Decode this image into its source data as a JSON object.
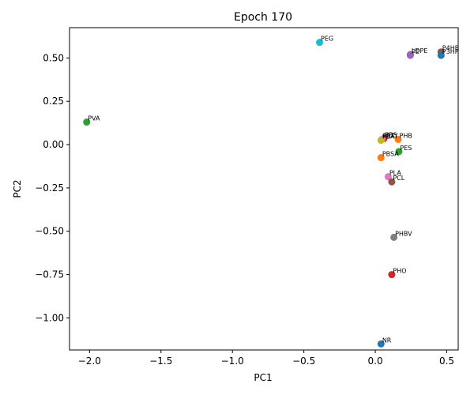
{
  "chart_data": {
    "type": "scatter",
    "title": "Epoch 170",
    "xlabel": "PC1",
    "ylabel": "PC2",
    "xlim": [
      -2.14,
      0.58
    ],
    "ylim": [
      -1.185,
      0.675
    ],
    "grid": false,
    "xticks": [
      -2.0,
      -1.5,
      -1.0,
      -0.5,
      0.0,
      0.5
    ],
    "xtick_labels": [
      "−2.0",
      "−1.5",
      "−1.0",
      "−0.5",
      "0.0",
      "0.5"
    ],
    "yticks": [
      0.5,
      0.25,
      0.0,
      -0.25,
      -0.5,
      -0.75,
      -1.0
    ],
    "ytick_labels": [
      "0.50",
      "0.25",
      "0.00",
      "−0.25",
      "−0.50",
      "−0.75",
      "−1.00"
    ],
    "points": [
      {
        "label": "PEG",
        "x": -0.39,
        "y": 0.59,
        "color": "#17becf"
      },
      {
        "label": "P4HB",
        "x": 0.46,
        "y": 0.535,
        "color": "#8c564b"
      },
      {
        "label": "P3HP",
        "x": 0.46,
        "y": 0.515,
        "color": "#1f77b4"
      },
      {
        "label": "PE",
        "x": 0.245,
        "y": 0.515,
        "color": "#9467bd"
      },
      {
        "label": "LDPE",
        "x": 0.245,
        "y": 0.52,
        "color": "#9467bd"
      },
      {
        "label": "PVA",
        "x": -2.02,
        "y": 0.13,
        "color": "#2ca02c"
      },
      {
        "label": "PBS",
        "x": 0.06,
        "y": 0.035,
        "color": "#d62728"
      },
      {
        "label": "PET",
        "x": 0.045,
        "y": 0.03,
        "color": "#e377c2"
      },
      {
        "label": "PBAT",
        "x": 0.04,
        "y": 0.025,
        "color": "#bcbd22"
      },
      {
        "label": "PHB",
        "x": 0.16,
        "y": 0.03,
        "color": "#ff7f0e"
      },
      {
        "label": "PES",
        "x": 0.165,
        "y": -0.04,
        "color": "#2ca02c"
      },
      {
        "label": "PBSA",
        "x": 0.04,
        "y": -0.075,
        "color": "#ff7f0e"
      },
      {
        "label": "PLA",
        "x": 0.09,
        "y": -0.185,
        "color": "#e377c2"
      },
      {
        "label": "PCL",
        "x": 0.115,
        "y": -0.215,
        "color": "#8c564b"
      },
      {
        "label": "PHBV",
        "x": 0.13,
        "y": -0.535,
        "color": "#7f7f7f"
      },
      {
        "label": "PHO",
        "x": 0.115,
        "y": -0.75,
        "color": "#d62728"
      },
      {
        "label": "NR",
        "x": 0.04,
        "y": -1.15,
        "color": "#1f77b4"
      }
    ]
  }
}
